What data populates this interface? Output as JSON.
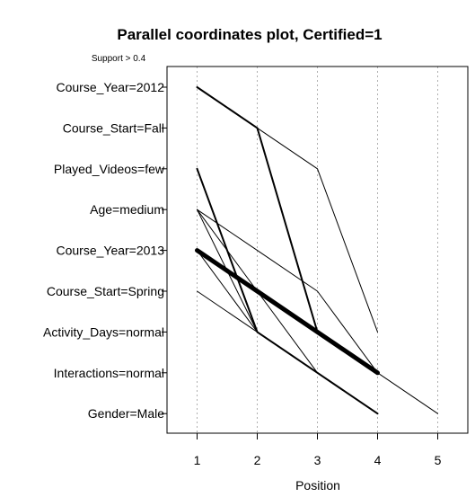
{
  "chart_data": {
    "type": "line",
    "title": "Parallel coordinates plot, Certified=1",
    "subtitle": "Support > 0.4",
    "xlabel": "Position",
    "ylabel": "",
    "x_ticks": [
      1,
      2,
      3,
      4,
      5
    ],
    "xlim": [
      0.5,
      5.5
    ],
    "categories": [
      "Course_Year=2012",
      "Course_Start=Fall",
      "Played_Videos=few",
      "Age=medium",
      "Course_Year=2013",
      "Course_Start=Spring",
      "Activity_Days=normal",
      "Interactions=normal",
      "Gender=Male"
    ],
    "grid": "vertical dotted",
    "series": [
      {
        "points": [
          [
            1,
            "Course_Year=2013"
          ],
          [
            2,
            "Course_Start=Spring"
          ],
          [
            3,
            "Activity_Days=normal"
          ],
          [
            4,
            "Interactions=normal"
          ]
        ],
        "weight": 5
      },
      {
        "points": [
          [
            1,
            "Course_Year=2012"
          ],
          [
            2,
            "Course_Start=Fall"
          ],
          [
            3,
            "Activity_Days=normal"
          ],
          [
            4,
            "Interactions=normal"
          ]
        ],
        "weight": 2
      },
      {
        "points": [
          [
            1,
            "Played_Videos=few"
          ],
          [
            2,
            "Activity_Days=normal"
          ],
          [
            3,
            "Interactions=normal"
          ],
          [
            4,
            "Gender=Male"
          ]
        ],
        "weight": 2
      },
      {
        "points": [
          [
            1,
            "Course_Year=2012"
          ],
          [
            2,
            "Course_Start=Fall"
          ],
          [
            3,
            "Played_Videos=few"
          ],
          [
            4,
            "Activity_Days=normal"
          ]
        ],
        "weight": 1
      },
      {
        "points": [
          [
            1,
            "Age=medium"
          ],
          [
            2,
            "Course_Year=2013"
          ],
          [
            3,
            "Course_Start=Spring"
          ],
          [
            4,
            "Interactions=normal"
          ],
          [
            5,
            "Gender=Male"
          ]
        ],
        "weight": 1
      },
      {
        "points": [
          [
            1,
            "Age=medium"
          ],
          [
            2,
            "Activity_Days=normal"
          ],
          [
            3,
            "Interactions=normal"
          ],
          [
            4,
            "Gender=Male"
          ]
        ],
        "weight": 1
      },
      {
        "points": [
          [
            1,
            "Course_Start=Spring"
          ],
          [
            2,
            "Activity_Days=normal"
          ],
          [
            3,
            "Interactions=normal"
          ],
          [
            4,
            "Gender=Male"
          ]
        ],
        "weight": 1
      },
      {
        "points": [
          [
            1,
            "Course_Year=2013"
          ],
          [
            2,
            "Activity_Days=normal"
          ],
          [
            3,
            "Interactions=normal"
          ],
          [
            4,
            "Gender=Male"
          ]
        ],
        "weight": 1
      },
      {
        "points": [
          [
            1,
            "Age=medium"
          ],
          [
            2,
            "Course_Start=Spring"
          ],
          [
            3,
            "Interactions=normal"
          ],
          [
            4,
            "Gender=Male"
          ]
        ],
        "weight": 1
      }
    ]
  }
}
